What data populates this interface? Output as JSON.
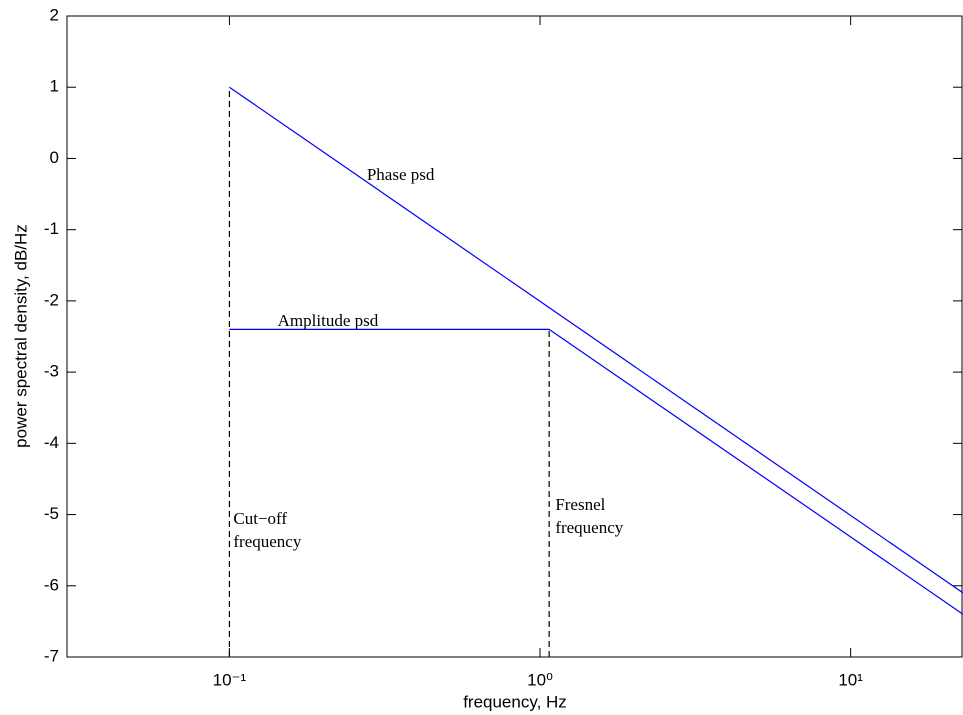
{
  "chart_data": {
    "type": "line",
    "xlabel": "frequency, Hz",
    "ylabel": "power spectral density, dB/Hz",
    "xscale": "log",
    "xlim": [
      0.03,
      23
    ],
    "ylim": [
      -7,
      2
    ],
    "xticks": [
      {
        "value": 0.1,
        "label": "10⁻¹"
      },
      {
        "value": 1,
        "label": "10⁰"
      },
      {
        "value": 10,
        "label": "10¹"
      }
    ],
    "yticks": [
      -7,
      -6,
      -5,
      -4,
      -3,
      -2,
      -1,
      0,
      1,
      2
    ],
    "grid": false,
    "series": [
      {
        "name": "Phase psd",
        "color": "#0000ff",
        "dash": false,
        "x": [
          0.1,
          23
        ],
        "values": [
          1,
          -6.1
        ]
      },
      {
        "name": "Amplitude psd",
        "color": "#0000ff",
        "dash": false,
        "x": [
          0.1,
          1.07,
          23
        ],
        "values": [
          -2.4,
          -2.4,
          -6.4
        ]
      },
      {
        "color": "#000000",
        "dash": true,
        "x": [
          0.1,
          0.1
        ],
        "values": [
          -7,
          1
        ]
      },
      {
        "color": "#000000",
        "dash": true,
        "x": [
          1.07,
          1.07
        ],
        "values": [
          -7,
          -2.4
        ]
      }
    ],
    "annotations": [
      {
        "lines": [
          "Cut−off",
          "frequency"
        ]
      },
      {
        "lines": [
          "Fresnel",
          "frequency"
        ]
      }
    ]
  }
}
